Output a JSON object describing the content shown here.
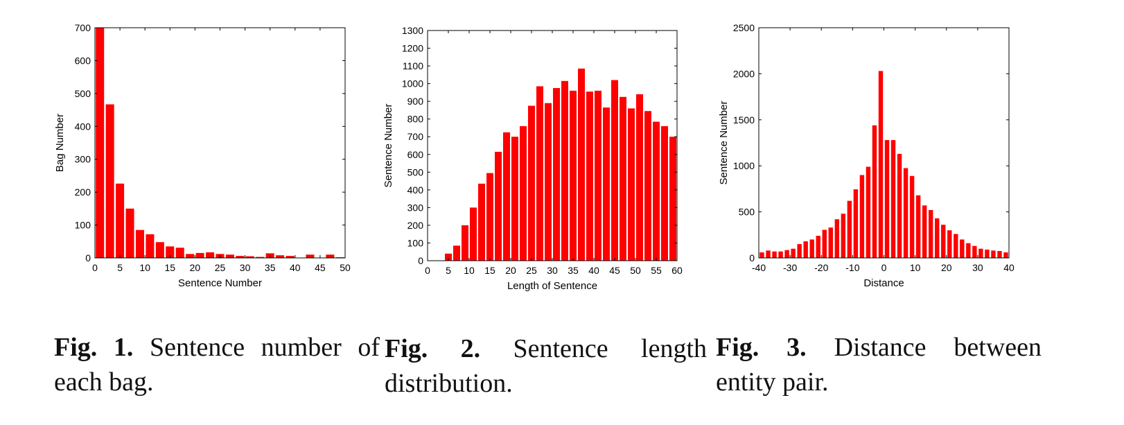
{
  "chart_data": [
    {
      "type": "bar",
      "xlabel": "Sentence Number",
      "ylabel": "Bag Number",
      "xlim": [
        0,
        50
      ],
      "ylim": [
        0,
        700
      ],
      "xticks": [
        "0",
        "5",
        "10",
        "15",
        "20",
        "25",
        "30",
        "35",
        "40",
        "45",
        "50"
      ],
      "yticks": [
        "0",
        "100",
        "200",
        "300",
        "400",
        "500",
        "600",
        "700"
      ],
      "grid": false,
      "x": [
        1,
        3,
        5,
        7,
        9,
        11,
        13,
        15,
        17,
        19,
        21,
        23,
        25,
        27,
        29,
        31,
        33,
        35,
        37,
        39,
        41,
        43,
        45,
        47,
        49
      ],
      "values": [
        700,
        467,
        226,
        150,
        85,
        72,
        48,
        35,
        31,
        12,
        15,
        17,
        12,
        10,
        6,
        5,
        3,
        14,
        8,
        6,
        1,
        10,
        1,
        10,
        2
      ]
    },
    {
      "type": "bar",
      "xlabel": "Length of Sentence",
      "ylabel": "Sentence Number",
      "xlim": [
        0,
        60
      ],
      "ylim": [
        0,
        1300
      ],
      "xticks": [
        "0",
        "5",
        "10",
        "15",
        "20",
        "25",
        "30",
        "35",
        "40",
        "45",
        "50",
        "55",
        "60"
      ],
      "yticks": [
        "0",
        "100",
        "200",
        "300",
        "400",
        "500",
        "600",
        "700",
        "800",
        "900",
        "1000",
        "1100",
        "1200",
        "1300"
      ],
      "grid": false,
      "x": [
        5,
        7,
        9,
        11,
        13,
        15,
        17,
        19,
        21,
        23,
        25,
        27,
        29,
        31,
        33,
        35,
        37,
        39,
        41,
        43,
        45,
        47,
        49,
        51,
        53,
        55,
        57,
        59
      ],
      "values": [
        40,
        85,
        200,
        300,
        435,
        495,
        615,
        725,
        700,
        760,
        875,
        985,
        890,
        975,
        1015,
        960,
        1085,
        955,
        960,
        865,
        1020,
        925,
        860,
        940,
        845,
        785,
        760,
        700
      ]
    },
    {
      "type": "bar",
      "xlabel": "Distance",
      "ylabel": "Sentence Number",
      "xlim": [
        -40,
        40
      ],
      "ylim": [
        0,
        2500
      ],
      "xticks": [
        "-40",
        "-30",
        "-20",
        "-10",
        "0",
        "10",
        "20",
        "30",
        "40"
      ],
      "yticks": [
        "0",
        "500",
        "1000",
        "1500",
        "2000",
        "2500"
      ],
      "grid": false,
      "x": [
        -39,
        -37,
        -35,
        -33,
        -31,
        -29,
        -27,
        -25,
        -23,
        -21,
        -19,
        -17,
        -15,
        -13,
        -11,
        -9,
        -7,
        -5,
        -3,
        -1,
        1,
        3,
        5,
        7,
        9,
        11,
        13,
        15,
        17,
        19,
        21,
        23,
        25,
        27,
        29,
        31,
        33,
        35,
        37,
        39
      ],
      "values": [
        60,
        80,
        70,
        70,
        85,
        100,
        150,
        180,
        200,
        240,
        305,
        330,
        420,
        480,
        620,
        745,
        900,
        990,
        1440,
        2030,
        1280,
        1280,
        1130,
        975,
        890,
        680,
        570,
        520,
        430,
        360,
        300,
        260,
        200,
        160,
        130,
        100,
        90,
        80,
        75,
        60
      ]
    }
  ],
  "captions": [
    {
      "fig": "Fig. 1.",
      "text": " Sentence number of each bag."
    },
    {
      "fig": "Fig. 2.",
      "text": " Sentence length distribution."
    },
    {
      "fig": "Fig. 3.",
      "text": " Distance between entity pair."
    }
  ],
  "colors": {
    "bar": "#ff0000",
    "axis": "#000000"
  }
}
